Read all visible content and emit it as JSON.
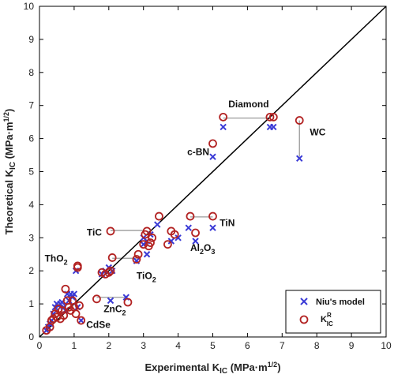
{
  "chart_data": {
    "type": "scatter",
    "xlabel": {
      "main": "Experimental K",
      "sub": "IC",
      "unit_open": " (MPa·m",
      "unit_sup": "1/2",
      "unit_close": ")"
    },
    "ylabel": {
      "main": "Theoretical K",
      "sub": "IC",
      "unit_open": " (MPa·m",
      "unit_sup": "1/2",
      "unit_close": ")"
    },
    "xlim": [
      0,
      10
    ],
    "ylim": [
      0,
      10
    ],
    "xticks": [
      "0",
      "1",
      "2",
      "3",
      "4",
      "5",
      "6",
      "7",
      "8",
      "9",
      "10"
    ],
    "yticks": [
      "0",
      "1",
      "2",
      "3",
      "4",
      "5",
      "6",
      "7",
      "8",
      "9",
      "10"
    ],
    "grid": false,
    "legend_position": "bottom-right",
    "reference_line": {
      "from": [
        0,
        0
      ],
      "to": [
        10,
        10
      ]
    },
    "series": [
      {
        "name": "Niu's model",
        "marker": "x",
        "color": "#3a3ad6",
        "points": [
          [
            0.2,
            0.2
          ],
          [
            0.25,
            0.3
          ],
          [
            0.3,
            0.4
          ],
          [
            0.35,
            0.5
          ],
          [
            0.4,
            0.7
          ],
          [
            0.45,
            0.9
          ],
          [
            0.5,
            1.0
          ],
          [
            0.55,
            0.95
          ],
          [
            0.6,
            1.0
          ],
          [
            0.65,
            1.05
          ],
          [
            0.7,
            0.9
          ],
          [
            0.75,
            0.8
          ],
          [
            0.8,
            1.3
          ],
          [
            0.85,
            1.1
          ],
          [
            0.9,
            1.3
          ],
          [
            0.95,
            1.2
          ],
          [
            1.0,
            1.3
          ],
          [
            1.05,
            2.0
          ],
          [
            1.1,
            0.9
          ],
          [
            1.2,
            0.5
          ],
          [
            1.8,
            1.9
          ],
          [
            1.9,
            2.0
          ],
          [
            2.0,
            2.1
          ],
          [
            2.1,
            2.0
          ],
          [
            2.05,
            1.1
          ],
          [
            2.5,
            1.2
          ],
          [
            2.8,
            2.3
          ],
          [
            3.0,
            3.0
          ],
          [
            3.1,
            2.9
          ],
          [
            3.2,
            3.1
          ],
          [
            3.0,
            2.8
          ],
          [
            3.1,
            2.5
          ],
          [
            3.4,
            3.4
          ],
          [
            3.8,
            2.9
          ],
          [
            4.0,
            3.0
          ],
          [
            4.3,
            3.3
          ],
          [
            4.5,
            2.9
          ],
          [
            5.0,
            3.3
          ],
          [
            5.0,
            5.45
          ],
          [
            5.3,
            6.35
          ],
          [
            6.65,
            6.35
          ],
          [
            6.75,
            6.35
          ],
          [
            7.5,
            5.4
          ]
        ]
      },
      {
        "name": "K_IC^R",
        "legend_main": "K",
        "legend_sup": "R",
        "legend_sub": "IC",
        "marker": "o",
        "color": "#b22222",
        "points": [
          [
            0.2,
            0.2
          ],
          [
            0.3,
            0.3
          ],
          [
            0.35,
            0.5
          ],
          [
            0.4,
            0.55
          ],
          [
            0.45,
            0.7
          ],
          [
            0.5,
            0.6
          ],
          [
            0.55,
            0.85
          ],
          [
            0.6,
            0.55
          ],
          [
            0.65,
            0.8
          ],
          [
            0.7,
            0.65
          ],
          [
            0.75,
            1.45
          ],
          [
            0.8,
            1.1
          ],
          [
            0.85,
            0.9
          ],
          [
            0.9,
            0.8
          ],
          [
            0.95,
            1.1
          ],
          [
            1.0,
            0.9
          ],
          [
            1.05,
            0.7
          ],
          [
            1.1,
            2.15
          ],
          [
            1.1,
            2.1
          ],
          [
            1.15,
            0.95
          ],
          [
            1.2,
            0.5
          ],
          [
            1.8,
            1.95
          ],
          [
            1.9,
            1.9
          ],
          [
            2.0,
            1.95
          ],
          [
            2.05,
            2.0
          ],
          [
            2.1,
            2.4
          ],
          [
            2.05,
            3.2
          ],
          [
            1.65,
            1.15
          ],
          [
            2.55,
            1.05
          ],
          [
            2.8,
            2.35
          ],
          [
            2.85,
            2.5
          ],
          [
            3.0,
            2.8
          ],
          [
            3.05,
            3.1
          ],
          [
            3.1,
            3.2
          ],
          [
            3.15,
            2.75
          ],
          [
            3.2,
            2.85
          ],
          [
            3.25,
            3.0
          ],
          [
            3.45,
            3.65
          ],
          [
            3.7,
            2.8
          ],
          [
            3.8,
            3.2
          ],
          [
            3.9,
            3.1
          ],
          [
            4.35,
            3.65
          ],
          [
            4.5,
            3.15
          ],
          [
            5.0,
            3.65
          ],
          [
            5.0,
            5.85
          ],
          [
            5.3,
            6.65
          ],
          [
            6.65,
            6.65
          ],
          [
            6.75,
            6.65
          ],
          [
            7.5,
            6.55
          ]
        ]
      }
    ],
    "connectors": [
      [
        [
          5.3,
          6.62
        ],
        [
          6.65,
          6.62
        ]
      ],
      [
        [
          7.5,
          6.55
        ],
        [
          7.5,
          5.45
        ]
      ],
      [
        [
          2.05,
          3.22
        ],
        [
          3.0,
          3.22
        ]
      ],
      [
        [
          4.35,
          3.63
        ],
        [
          5.0,
          3.63
        ]
      ],
      [
        [
          1.65,
          1.2
        ],
        [
          2.5,
          1.2
        ]
      ],
      [
        [
          2.1,
          2.38
        ],
        [
          2.8,
          2.38
        ]
      ],
      [
        [
          2.8,
          2.35
        ],
        [
          2.8,
          2.25
        ]
      ]
    ],
    "annotations": [
      {
        "label": "Diamond",
        "x": 5.45,
        "y": 6.95,
        "anchor": "start"
      },
      {
        "label": "c-BN",
        "x": 4.9,
        "y": 5.5,
        "anchor": "end"
      },
      {
        "label": "WC",
        "x": 7.8,
        "y": 6.1,
        "anchor": "start"
      },
      {
        "label": "TiN",
        "x": 5.2,
        "y": 3.35,
        "anchor": "start"
      },
      {
        "label": "TiC",
        "x": 1.8,
        "y": 3.07,
        "anchor": "end"
      },
      {
        "label": "Al",
        "sub": "2",
        "tail": "O",
        "sub2": "3",
        "x": 4.35,
        "y": 2.6,
        "anchor": "start"
      },
      {
        "label": "ThO",
        "sub": "2",
        "x": 0.15,
        "y": 2.28,
        "anchor": "start"
      },
      {
        "label": "TiO",
        "sub": "2",
        "x": 2.8,
        "y": 1.75,
        "anchor": "start"
      },
      {
        "label": "ZnC",
        "sub": "2",
        "x": 1.85,
        "y": 0.75,
        "anchor": "start"
      },
      {
        "label": "CdSe",
        "x": 1.35,
        "y": 0.27,
        "anchor": "start"
      }
    ]
  }
}
